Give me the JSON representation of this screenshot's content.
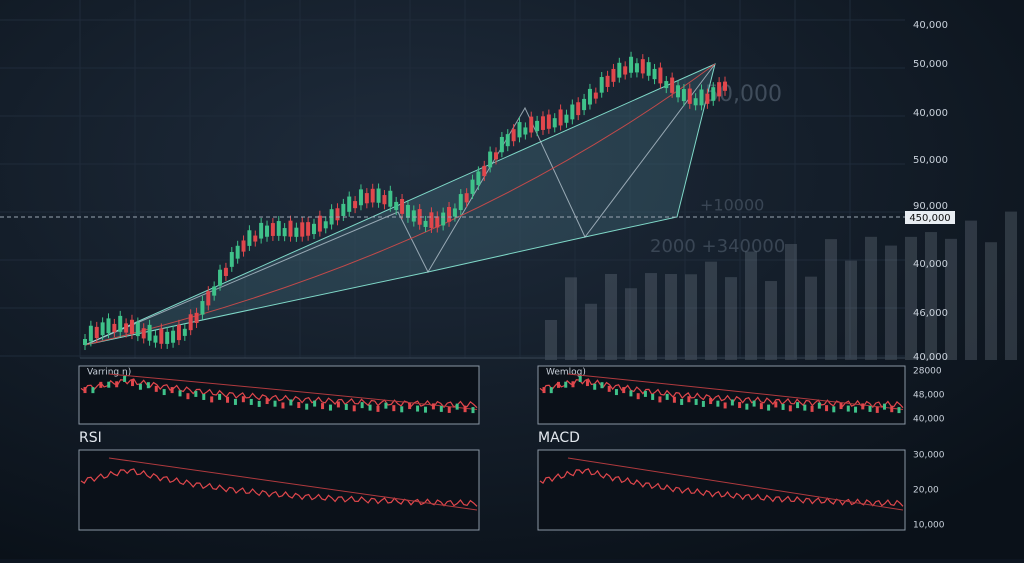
{
  "main_axis": [
    "40,000",
    "50,000",
    "40,000",
    "50,000",
    "90,000",
    "40,000",
    "46,000",
    "40,000"
  ],
  "price_tag": "450,000",
  "background_text": [
    "50,000",
    "+10000",
    "2000 +340000"
  ],
  "panels": [
    {
      "label": "Varring ŋ)",
      "axis": []
    },
    {
      "label": "Wemlog)",
      "axis": [
        "28000",
        "48,000",
        "40,000"
      ]
    },
    {
      "label": "RSI",
      "axis": []
    },
    {
      "label": "MACD",
      "axis": [
        "30,000",
        "20,00",
        "10,000"
      ]
    }
  ]
}
